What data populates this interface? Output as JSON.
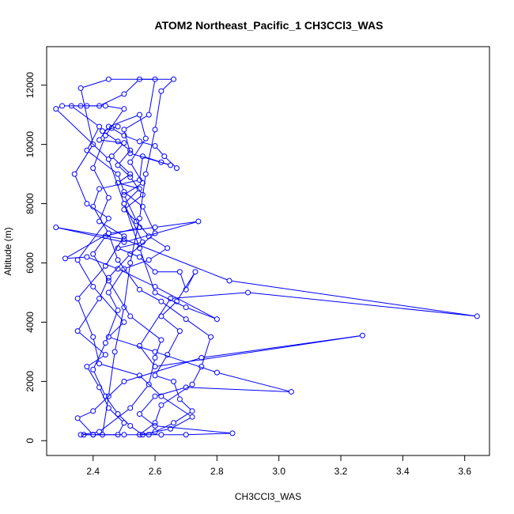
{
  "chart_data": {
    "type": "scatter",
    "title": "ATOM2 Northeast_Pacific_1 CH3CCl3_WAS",
    "xlabel": "CH3CCl3_WAS",
    "ylabel": "Altitude (m)",
    "xlim": [
      2.25,
      3.68
    ],
    "ylim": [
      -500,
      13300
    ],
    "xticks": [
      2.4,
      2.6,
      2.8,
      3.0,
      3.2,
      3.4,
      3.6
    ],
    "xtick_labels": [
      "2.4",
      "2.6",
      "2.8",
      "3.0",
      "3.2",
      "3.4",
      "3.6"
    ],
    "yticks": [
      0,
      2000,
      4000,
      6000,
      8000,
      10000,
      12000
    ],
    "ytick_labels": [
      "0",
      "2000",
      "4000",
      "6000",
      "8000",
      "10000",
      "12000"
    ],
    "series_color": "#0000FF",
    "marker": "open-circle",
    "connected": true,
    "points": [
      [
        2.37,
        200
      ],
      [
        2.4,
        200
      ],
      [
        2.43,
        200
      ],
      [
        2.45,
        1500
      ],
      [
        2.47,
        3000
      ],
      [
        2.5,
        4500
      ],
      [
        2.52,
        6000
      ],
      [
        2.55,
        7500
      ],
      [
        2.57,
        9000
      ],
      [
        2.6,
        10500
      ],
      [
        2.62,
        11800
      ],
      [
        2.66,
        12200
      ],
      [
        2.55,
        12200
      ],
      [
        2.5,
        11700
      ],
      [
        2.42,
        11300
      ],
      [
        2.36,
        11300
      ],
      [
        2.3,
        11300
      ],
      [
        2.28,
        11200
      ],
      [
        2.45,
        9500
      ],
      [
        2.5,
        8000
      ],
      [
        2.55,
        6500
      ],
      [
        2.6,
        5000
      ],
      [
        2.7,
        4500
      ],
      [
        2.8,
        4100
      ],
      [
        2.6,
        5200
      ],
      [
        2.48,
        5800
      ],
      [
        2.38,
        6200
      ],
      [
        2.31,
        6150
      ],
      [
        2.45,
        7000
      ],
      [
        2.6,
        7200
      ],
      [
        2.74,
        7400
      ],
      [
        2.5,
        6700
      ],
      [
        2.28,
        7200
      ],
      [
        2.5,
        6800
      ],
      [
        2.84,
        5400
      ],
      [
        3.64,
        4200
      ],
      [
        2.9,
        5000
      ],
      [
        2.65,
        4800
      ],
      [
        2.55,
        3200
      ],
      [
        2.6,
        2500
      ],
      [
        3.27,
        3550
      ],
      [
        2.75,
        2800
      ],
      [
        2.5,
        2000
      ],
      [
        2.4,
        1000
      ],
      [
        2.35,
        760
      ],
      [
        2.4,
        200
      ],
      [
        2.5,
        200
      ],
      [
        2.62,
        200
      ],
      [
        2.7,
        200
      ],
      [
        2.85,
        250
      ],
      [
        2.6,
        500
      ],
      [
        2.55,
        900
      ],
      [
        2.6,
        1500
      ],
      [
        2.7,
        1800
      ],
      [
        3.04,
        1650
      ],
      [
        2.8,
        2300
      ],
      [
        2.6,
        3000
      ],
      [
        2.45,
        3500
      ],
      [
        2.5,
        4000
      ],
      [
        2.4,
        5200
      ],
      [
        2.35,
        6100
      ],
      [
        2.45,
        7500
      ],
      [
        2.38,
        8000
      ],
      [
        2.34,
        9000
      ],
      [
        2.4,
        10000
      ],
      [
        2.36,
        11900
      ],
      [
        2.45,
        12200
      ],
      [
        2.6,
        12200
      ],
      [
        2.58,
        11000
      ],
      [
        2.5,
        10500
      ],
      [
        2.52,
        9700
      ],
      [
        2.65,
        9300
      ],
      [
        2.62,
        9400
      ],
      [
        2.56,
        9600
      ],
      [
        2.55,
        8800
      ],
      [
        2.42,
        8500
      ],
      [
        2.4,
        7900
      ],
      [
        2.45,
        7000
      ],
      [
        2.48,
        6100
      ],
      [
        2.55,
        5100
      ],
      [
        2.62,
        4700
      ],
      [
        2.7,
        4100
      ],
      [
        2.78,
        3500
      ],
      [
        2.75,
        2500
      ],
      [
        2.72,
        1900
      ],
      [
        2.62,
        1200
      ],
      [
        2.6,
        600
      ],
      [
        2.55,
        200
      ],
      [
        2.65,
        400
      ],
      [
        2.72,
        800
      ],
      [
        2.62,
        1500
      ],
      [
        2.55,
        2200
      ],
      [
        2.42,
        2600
      ],
      [
        2.4,
        3500
      ],
      [
        2.35,
        4800
      ],
      [
        2.44,
        5900
      ],
      [
        2.5,
        6900
      ],
      [
        2.42,
        7400
      ],
      [
        2.45,
        8200
      ],
      [
        2.4,
        9200
      ],
      [
        2.44,
        10300
      ],
      [
        2.5,
        11200
      ],
      [
        2.44,
        11300
      ],
      [
        2.38,
        11300
      ],
      [
        2.33,
        11300
      ],
      [
        2.42,
        10600
      ],
      [
        2.38,
        9800
      ],
      [
        2.48,
        9000
      ],
      [
        2.5,
        8400
      ],
      [
        2.56,
        7900
      ],
      [
        2.6,
        7000
      ],
      [
        2.52,
        6300
      ],
      [
        2.45,
        5500
      ],
      [
        2.42,
        4800
      ],
      [
        2.35,
        3700
      ],
      [
        2.44,
        2900
      ],
      [
        2.38,
        2500
      ],
      [
        2.42,
        1800
      ],
      [
        2.45,
        1100
      ],
      [
        2.5,
        600
      ],
      [
        2.48,
        200
      ],
      [
        2.36,
        200
      ],
      [
        2.42,
        300
      ],
      [
        2.52,
        1100
      ],
      [
        2.58,
        1900
      ],
      [
        2.6,
        2800
      ],
      [
        2.62,
        3400
      ],
      [
        2.52,
        4200
      ],
      [
        2.45,
        5400
      ],
      [
        2.4,
        6300
      ],
      [
        2.44,
        6900
      ],
      [
        2.55,
        7200
      ],
      [
        2.5,
        8300
      ],
      [
        2.56,
        8700
      ],
      [
        2.52,
        9400
      ],
      [
        2.57,
        10200
      ],
      [
        2.55,
        11000
      ],
      [
        2.45,
        10600
      ],
      [
        2.42,
        10150
      ],
      [
        2.5,
        10050
      ],
      [
        2.46,
        9600
      ],
      [
        2.52,
        9000
      ],
      [
        2.48,
        8700
      ],
      [
        2.55,
        8500
      ],
      [
        2.5,
        8000
      ],
      [
        2.56,
        6700
      ],
      [
        2.48,
        6500
      ],
      [
        2.55,
        6200
      ],
      [
        2.6,
        5700
      ],
      [
        2.68,
        5700
      ],
      [
        2.7,
        5100
      ],
      [
        2.73,
        5700
      ],
      [
        2.67,
        4700
      ],
      [
        2.62,
        4200
      ],
      [
        2.68,
        3700
      ],
      [
        2.64,
        2900
      ],
      [
        2.6,
        2200
      ],
      [
        2.66,
        2000
      ],
      [
        2.68,
        1400
      ],
      [
        2.72,
        1000
      ],
      [
        2.66,
        600
      ],
      [
        2.6,
        300
      ],
      [
        2.58,
        200
      ],
      [
        2.56,
        200
      ],
      [
        2.52,
        500
      ],
      [
        2.48,
        900
      ],
      [
        2.44,
        1500
      ],
      [
        2.4,
        2400
      ],
      [
        2.44,
        3300
      ],
      [
        2.48,
        4400
      ],
      [
        2.45,
        5000
      ],
      [
        2.5,
        5800
      ],
      [
        2.58,
        6100
      ],
      [
        2.64,
        6500
      ],
      [
        2.58,
        6900
      ],
      [
        2.54,
        7400
      ],
      [
        2.5,
        7800
      ],
      [
        2.56,
        8300
      ],
      [
        2.52,
        8900
      ],
      [
        2.48,
        9300
      ],
      [
        2.52,
        9800
      ],
      [
        2.48,
        10100
      ],
      [
        2.43,
        10450
      ],
      [
        2.48,
        10600
      ],
      [
        2.46,
        10550
      ],
      [
        2.5,
        10300
      ],
      [
        2.55,
        10100
      ],
      [
        2.6,
        9950
      ],
      [
        2.63,
        9600
      ],
      [
        2.67,
        9200
      ]
    ]
  }
}
